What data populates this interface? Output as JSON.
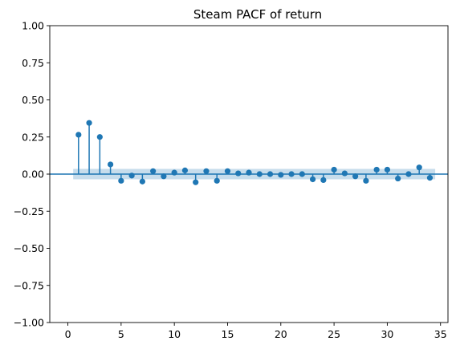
{
  "chart_data": {
    "type": "stem",
    "title": "Steam PACF of return",
    "xlabel": "",
    "ylabel": "",
    "xlim": [
      -1.7,
      35.7
    ],
    "ylim": [
      -1.0,
      1.0
    ],
    "x_ticks": [
      0,
      5,
      10,
      15,
      20,
      25,
      30,
      35
    ],
    "y_ticks": [
      -1.0,
      -0.75,
      -0.5,
      -0.25,
      0.0,
      0.25,
      0.5,
      0.75,
      1.0
    ],
    "y_tick_labels": [
      "−1.00",
      "−0.75",
      "−0.50",
      "−0.25",
      "0.00",
      "0.25",
      "0.50",
      "0.75",
      "1.00"
    ],
    "grid": false,
    "colors": {
      "series": "#1f77b4",
      "band": "#1f77b4"
    },
    "confidence_band": {
      "x_range": [
        0.5,
        34.5
      ],
      "lower": -0.035,
      "upper": 0.035
    },
    "series": [
      {
        "x": [
          1,
          2,
          3,
          4,
          5,
          6,
          7,
          8,
          9,
          10,
          11,
          12,
          13,
          14,
          15,
          16,
          17,
          18,
          19,
          20,
          21,
          22,
          23,
          24,
          25,
          26,
          27,
          28,
          29,
          30,
          31,
          32,
          33,
          34
        ],
        "values": [
          0.265,
          0.345,
          0.25,
          0.065,
          -0.045,
          -0.01,
          -0.05,
          0.02,
          -0.015,
          0.01,
          0.025,
          -0.055,
          0.02,
          -0.045,
          0.02,
          0.005,
          0.01,
          0.0,
          0.0,
          -0.005,
          0.0,
          0.0,
          -0.035,
          -0.04,
          0.03,
          0.005,
          -0.015,
          -0.045,
          0.03,
          0.03,
          -0.03,
          0.0,
          0.045,
          -0.025
        ]
      }
    ]
  }
}
